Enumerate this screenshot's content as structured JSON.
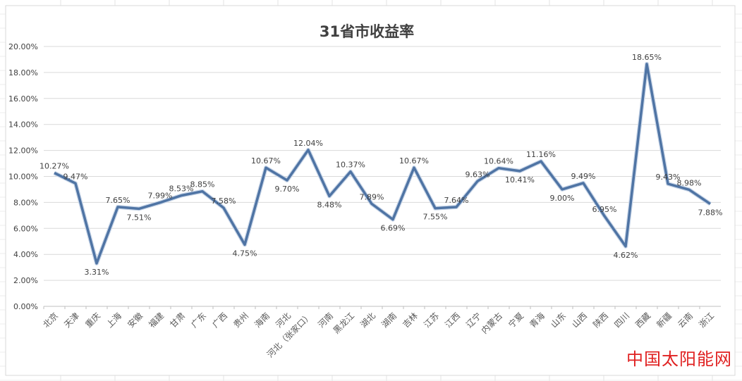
{
  "watermark": "中国太阳能网",
  "chart_data": {
    "type": "line",
    "title": "31省市收益率",
    "xlabel": "",
    "ylabel": "",
    "ylim": [
      0,
      20
    ],
    "y_ticks": [
      "0.00%",
      "2.00%",
      "4.00%",
      "6.00%",
      "8.00%",
      "10.00%",
      "12.00%",
      "14.00%",
      "16.00%",
      "18.00%",
      "20.00%"
    ],
    "grid": "horizontal",
    "legend": "none",
    "line_color": "#4f74a4",
    "categories": [
      "北京",
      "天津",
      "重庆",
      "上海",
      "安徽",
      "福建",
      "甘肃",
      "广东",
      "广西",
      "贵州",
      "海南",
      "河北",
      "河北（张家口）",
      "河南",
      "黑龙江",
      "湖北",
      "湖南",
      "吉林",
      "江苏",
      "江西",
      "辽宁",
      "内蒙古",
      "宁夏",
      "青海",
      "山东",
      "山西",
      "陕西",
      "四川",
      "西藏",
      "新疆",
      "云南",
      "浙江"
    ],
    "values": [
      10.27,
      9.47,
      3.31,
      7.65,
      7.51,
      7.99,
      8.53,
      8.85,
      7.58,
      4.75,
      10.67,
      9.7,
      12.04,
      8.48,
      10.37,
      7.89,
      6.69,
      10.67,
      7.55,
      7.64,
      9.63,
      10.64,
      10.41,
      11.16,
      9.0,
      9.49,
      6.95,
      4.62,
      18.65,
      9.43,
      8.98,
      7.88
    ],
    "data_labels": [
      "10.27%",
      "9.47%",
      "3.31%",
      "7.65%",
      "7.51%",
      "7.99%",
      "8.53%",
      "8.85%",
      "7.58%",
      "4.75%",
      "10.67%",
      "9.70%",
      "12.04%",
      "8.48%",
      "10.37%",
      "7.89%",
      "6.69%",
      "10.67%",
      "7.55%",
      "7.64%",
      "9.63%",
      "10.64%",
      "10.41%",
      "11.16%",
      "9.00%",
      "9.49%",
      "6.95%",
      "4.62%",
      "18.65%",
      "9.43%",
      "8.98%",
      "7.88%"
    ]
  }
}
